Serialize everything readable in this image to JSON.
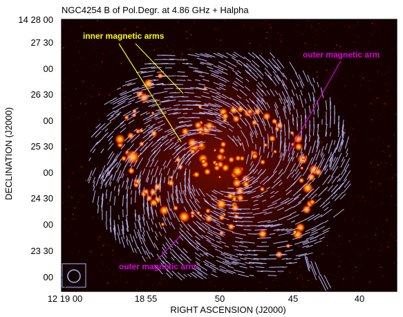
{
  "chart_data": {
    "type": "image-map",
    "title": "NGC4254  B of Pol.Degr. at 4.86 GHz + Halpha",
    "xlabel": "RIGHT ASCENSION (J2000)",
    "ylabel": "DECLINATION (J2000)",
    "x_ticks": [
      "12 19 00",
      "18 55",
      "50",
      "45",
      "40"
    ],
    "y_ticks": [
      "14 28 00",
      "27 30",
      "00",
      "26 30",
      "00",
      "25 30",
      "00",
      "24 30",
      "00",
      "23 30",
      "00"
    ],
    "background": "Halpha emission (heat colormap)",
    "overlay": "magnetic field B vectors of polarized degree",
    "beam": "circular beam, lower-left corner",
    "grid": false,
    "annotations": [
      {
        "text": "inner magnetic arms",
        "color": "#ffff00"
      },
      {
        "text": "outer magnetic arm",
        "color": "#dd00dd"
      },
      {
        "text": "outer magnetic arm",
        "color": "#dd00dd"
      }
    ]
  },
  "colors": {
    "frame": "#000000",
    "map_background": "#140000",
    "vectors": "#b8b8f0",
    "inner_arm_label": "#ffff00",
    "outer_arm_label": "#dd00dd",
    "beam_box": "#9fb8ff"
  }
}
